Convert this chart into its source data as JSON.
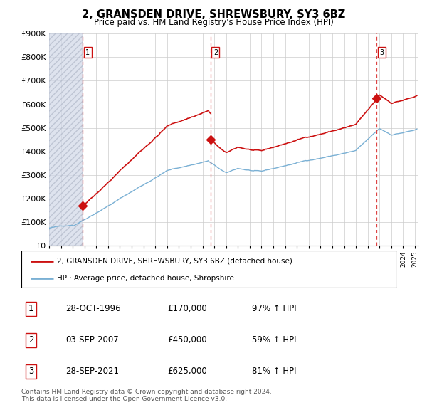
{
  "title": "2, GRANSDEN DRIVE, SHREWSBURY, SY3 6BZ",
  "subtitle": "Price paid vs. HM Land Registry's House Price Index (HPI)",
  "ylim": [
    0,
    900000
  ],
  "yticks": [
    0,
    100000,
    200000,
    300000,
    400000,
    500000,
    600000,
    700000,
    800000,
    900000
  ],
  "ytick_labels": [
    "£0",
    "£100K",
    "£200K",
    "£300K",
    "£400K",
    "£500K",
    "£600K",
    "£700K",
    "£800K",
    "£900K"
  ],
  "sale_dates_year": [
    1996.83,
    2007.67,
    2021.75
  ],
  "sale_prices": [
    170000,
    450000,
    625000
  ],
  "sale_labels": [
    "1",
    "2",
    "3"
  ],
  "hpi_line_color": "#7ab0d4",
  "price_line_color": "#cc1111",
  "vline_color": "#dd4444",
  "hatch_color": "#d0d8e8",
  "legend_entries": [
    "2, GRANSDEN DRIVE, SHREWSBURY, SY3 6BZ (detached house)",
    "HPI: Average price, detached house, Shropshire"
  ],
  "footer_text": "Contains HM Land Registry data © Crown copyright and database right 2024.\nThis data is licensed under the Open Government Licence v3.0.",
  "table_rows": [
    [
      "1",
      "28-OCT-1996",
      "£170,000",
      "97% ↑ HPI"
    ],
    [
      "2",
      "03-SEP-2007",
      "£450,000",
      "59% ↑ HPI"
    ],
    [
      "3",
      "28-SEP-2021",
      "£625,000",
      "81% ↑ HPI"
    ]
  ]
}
